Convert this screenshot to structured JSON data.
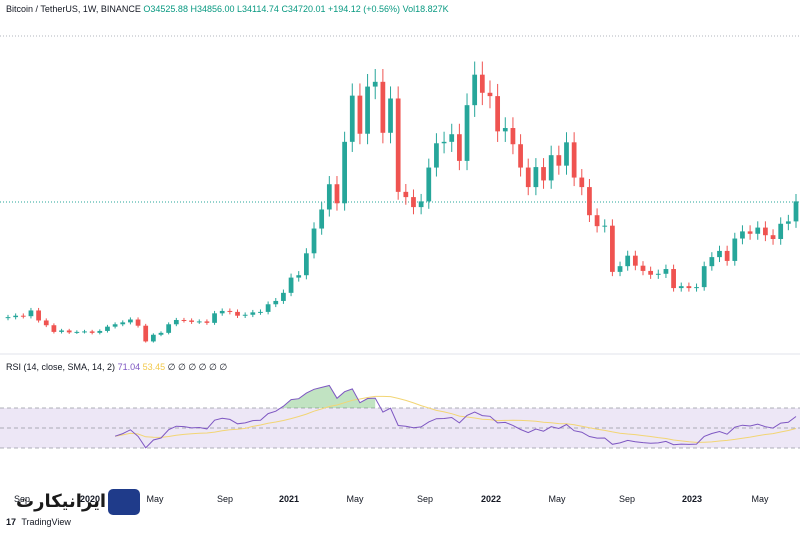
{
  "header": {
    "symbol": "Bitcoin / TetherUS, 1W, BINANCE",
    "open": "O34525.88",
    "high": "H34856.00",
    "low": "L34114.74",
    "close": "C34720.01",
    "change": "+194.12 (+0.56%)",
    "volume": "Vol18.827K"
  },
  "rsi": {
    "label": "RSI (14, close, SMA, 14, 2)",
    "value": "71.04",
    "sma_value": "53.45",
    "placeholders": "∅ ∅ ∅ ∅ ∅ ∅"
  },
  "x_axis": {
    "ticks": [
      "Sep",
      "2020",
      "May",
      "Sep",
      "2021",
      "May",
      "Sep",
      "2022",
      "May",
      "Sep",
      "2023",
      "May"
    ]
  },
  "branding": {
    "site_logo": "ایرانیکارت",
    "tradingview": "TradingView",
    "tv_icon": "17"
  },
  "colors": {
    "up": "#26a69a",
    "down": "#ef5350",
    "rsi_line": "#7e57c2",
    "rsi_sma": "#f2d574",
    "rsi_band": "#ede7f6",
    "grid": "#e0e3eb"
  },
  "chart_data": {
    "type": "candlestick",
    "price_series": {
      "name": "Bitcoin / TetherUS",
      "close": [
        10400,
        10700,
        10600,
        11800,
        9700,
        8700,
        7300,
        7600,
        7200,
        7300,
        7400,
        7100,
        7500,
        8400,
        8900,
        9300,
        9900,
        8600,
        5300,
        6700,
        7100,
        8900,
        9800,
        9700,
        9400,
        9500,
        9200,
        11200,
        11700,
        11500,
        10700,
        10900,
        11400,
        11500,
        13100,
        13800,
        15500,
        18700,
        19200,
        23800,
        29000,
        33000,
        38300,
        34300,
        47200,
        56900,
        48900,
        58800,
        59800,
        49100,
        56300,
        36700,
        35600,
        33500,
        34700,
        41800,
        46900,
        47200,
        48800,
        43200,
        54900,
        61300,
        57500,
        56800,
        49400,
        50100,
        46700,
        41800,
        37700,
        41900,
        39100,
        44400,
        42200,
        47100,
        39700,
        37700,
        31800,
        29500,
        29600,
        19900,
        21100,
        23300,
        21200,
        20100,
        19300,
        19500,
        20500,
        16500,
        16900,
        16500,
        16700,
        21100,
        23000,
        24300,
        22200,
        26900,
        28400,
        27900,
        29200,
        27600,
        26800,
        30000,
        30500,
        34700
      ]
    },
    "rsi_series": {
      "name": "RSI (14, close, SMA, 14, 2)",
      "range": [
        0,
        100
      ],
      "bands": [
        30,
        50,
        70
      ],
      "last_value": 71.04,
      "last_sma": 53.45
    }
  }
}
